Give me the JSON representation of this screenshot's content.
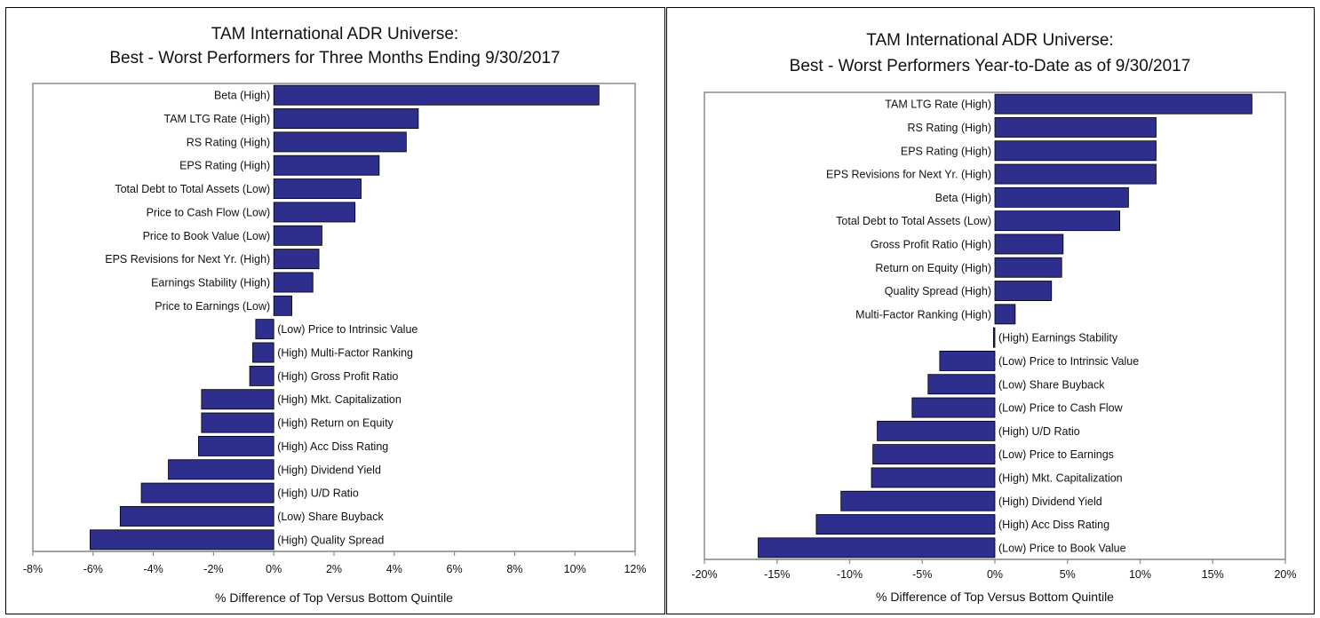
{
  "chart_data": [
    {
      "type": "bar",
      "orientation": "horizontal",
      "title": "TAM International ADR Universe:",
      "subtitle": "Best - Worst Performers for Three Months Ending 9/30/2017",
      "xlabel": "% Difference of Top Versus Bottom Quintile",
      "ylabel": "",
      "xlim": [
        -8,
        12
      ],
      "xticks": [
        "-8%",
        "-6%",
        "-4%",
        "-2%",
        "0%",
        "2%",
        "4%",
        "6%",
        "8%",
        "10%",
        "12%"
      ],
      "tick_values": [
        -8,
        -6,
        -4,
        -2,
        0,
        2,
        4,
        6,
        8,
        10,
        12
      ],
      "grid": false,
      "bar_color": "#2e2e8c",
      "categories": [
        "Beta (High)",
        "TAM LTG Rate (High)",
        "RS Rating (High)",
        "EPS Rating (High)",
        "Total Debt to Total Assets (Low)",
        "Price to Cash Flow (Low)",
        "Price to Book Value (Low)",
        "EPS Revisions for Next Yr. (High)",
        "Earnings Stability (High)",
        "Price to Earnings (Low)",
        "(Low) Price to Intrinsic Value",
        "(High) Multi-Factor Ranking",
        "(High) Gross Profit Ratio",
        "(High) Mkt. Capitalization",
        "(High) Return on Equity",
        "(High) Acc Diss Rating",
        "(High) Dividend Yield",
        "(High) U/D Ratio",
        "(Low) Share Buyback",
        "(High) Quality Spread"
      ],
      "values": [
        10.8,
        4.8,
        4.4,
        3.5,
        2.9,
        2.7,
        1.6,
        1.5,
        1.3,
        0.6,
        -0.6,
        -0.7,
        -0.8,
        -2.4,
        -2.4,
        -2.5,
        -3.5,
        -4.4,
        -5.1,
        -6.1
      ]
    },
    {
      "type": "bar",
      "orientation": "horizontal",
      "title": "TAM International ADR Universe:",
      "subtitle": "Best - Worst Performers Year-to-Date as of 9/30/2017",
      "xlabel": "% Difference of Top Versus Bottom Quintile",
      "ylabel": "",
      "xlim": [
        -20,
        20
      ],
      "xticks": [
        "-20%",
        "-15%",
        "-10%",
        "-5%",
        "0%",
        "5%",
        "10%",
        "15%",
        "20%"
      ],
      "tick_values": [
        -20,
        -15,
        -10,
        -5,
        0,
        5,
        10,
        15,
        20
      ],
      "grid": false,
      "bar_color": "#2e2e8c",
      "categories": [
        "TAM LTG Rate (High)",
        "RS Rating (High)",
        "EPS Rating (High)",
        "EPS Revisions for Next Yr. (High)",
        "Beta (High)",
        "Total Debt to Total Assets (Low)",
        "Gross Profit Ratio (High)",
        "Return on Equity (High)",
        "Quality Spread (High)",
        "Multi-Factor Ranking (High)",
        "(High) Earnings Stability",
        "(Low) Price to Intrinsic Value",
        "(Low) Share Buyback",
        "(Low) Price to Cash Flow",
        "(High) U/D Ratio",
        "(Low) Price to Earnings",
        "(High) Mkt. Capitalization",
        "(High) Dividend Yield",
        "(High) Acc Diss Rating",
        "(Low) Price to Book Value"
      ],
      "values": [
        17.7,
        11.1,
        11.1,
        11.1,
        9.2,
        8.6,
        4.7,
        4.6,
        3.9,
        1.4,
        -0.1,
        -3.8,
        -4.6,
        -5.7,
        -8.1,
        -8.4,
        -8.5,
        -10.6,
        -12.3,
        -16.3
      ]
    }
  ]
}
